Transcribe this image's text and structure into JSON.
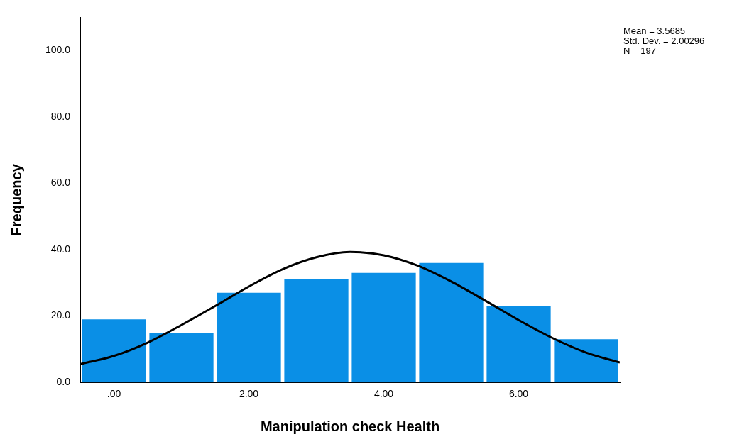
{
  "chart_data": {
    "type": "histogram",
    "xlabel": "Manipulation check Health",
    "ylabel": "Frequency",
    "bins": [
      -0.5,
      0.5,
      1.5,
      2.5,
      3.5,
      4.5,
      5.5,
      6.5,
      7.5
    ],
    "values": [
      19,
      15,
      27,
      31,
      33,
      36,
      23,
      13
    ],
    "color": "#0a8fe6",
    "series": [
      {
        "type": "line",
        "color": "#000000",
        "x": [
          -0.5,
          0,
          0.5,
          1,
          1.5,
          2,
          2.5,
          3,
          3.5,
          4,
          4.5,
          5,
          5.5,
          6,
          6.5,
          7,
          7.5
        ],
        "values": [
          5.5,
          8,
          12,
          17.3,
          23,
          28.9,
          34.1,
          37.7,
          39.3,
          38.3,
          35.2,
          30.4,
          24.7,
          18.8,
          13.4,
          9,
          6
        ]
      }
    ],
    "xlim": [
      -0.5,
      7.5
    ],
    "xticks": [
      {
        "value": 0,
        "label": ".00"
      },
      {
        "value": 2,
        "label": "2.00"
      },
      {
        "value": 4,
        "label": "4.00"
      },
      {
        "value": 6,
        "label": "6.00"
      }
    ],
    "ylim": [
      0,
      110
    ],
    "yticks": [
      {
        "value": 0,
        "label": "0.0"
      },
      {
        "value": 20,
        "label": "20.0"
      },
      {
        "value": 40,
        "label": "40.0"
      },
      {
        "value": 60,
        "label": "60.0"
      },
      {
        "value": 80,
        "label": "80.0"
      },
      {
        "value": 100,
        "label": "100.0"
      }
    ],
    "grid": false,
    "legend": false,
    "annotations": [
      "Mean = 3.5685",
      "Std. Dev. = 2.00296",
      "N = 197"
    ]
  }
}
